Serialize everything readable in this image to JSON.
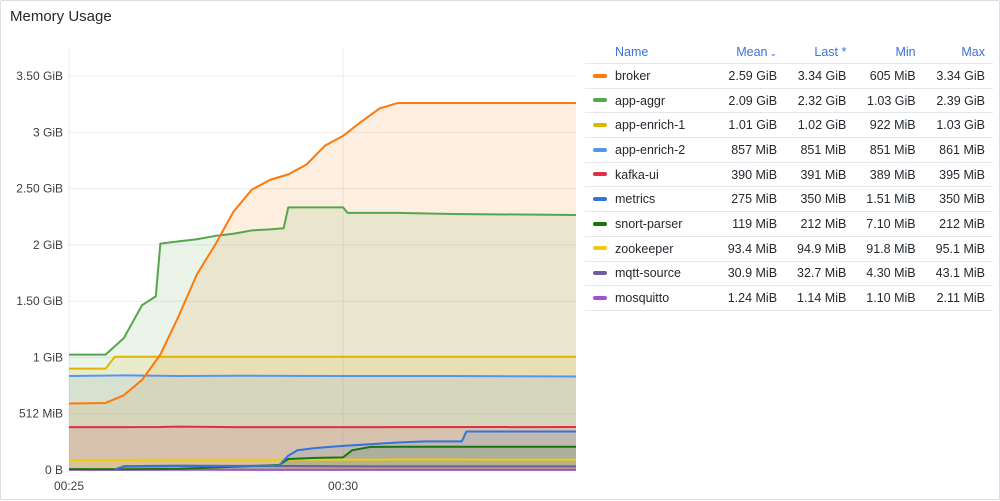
{
  "panel": {
    "title": "Memory Usage"
  },
  "legend": {
    "headers": {
      "name": "Name",
      "mean": "Mean",
      "last": "Last *",
      "min": "Min",
      "max": "Max"
    },
    "sort_icon": "chevron-down-icon",
    "rows": [
      {
        "name": "broker",
        "color": "#ff780a",
        "mean": "2.59 GiB",
        "last": "3.34 GiB",
        "min": "605 MiB",
        "max": "3.34 GiB"
      },
      {
        "name": "app-aggr",
        "color": "#56a64b",
        "mean": "2.09 GiB",
        "last": "2.32 GiB",
        "min": "1.03 GiB",
        "max": "2.39 GiB"
      },
      {
        "name": "app-enrich-1",
        "color": "#e0b400",
        "mean": "1.01 GiB",
        "last": "1.02 GiB",
        "min": "922 MiB",
        "max": "1.03 GiB"
      },
      {
        "name": "app-enrich-2",
        "color": "#5794f2",
        "mean": "857 MiB",
        "last": "851 MiB",
        "min": "851 MiB",
        "max": "861 MiB"
      },
      {
        "name": "kafka-ui",
        "color": "#e02f44",
        "mean": "390 MiB",
        "last": "391 MiB",
        "min": "389 MiB",
        "max": "395 MiB"
      },
      {
        "name": "metrics",
        "color": "#3274d9",
        "mean": "275 MiB",
        "last": "350 MiB",
        "min": "1.51 MiB",
        "max": "350 MiB"
      },
      {
        "name": "snort-parser",
        "color": "#19730e",
        "mean": "119 MiB",
        "last": "212 MiB",
        "min": "7.10 MiB",
        "max": "212 MiB"
      },
      {
        "name": "zookeeper",
        "color": "#f2cc0c",
        "mean": "93.4 MiB",
        "last": "94.9 MiB",
        "min": "91.8 MiB",
        "max": "95.1 MiB"
      },
      {
        "name": "mqtt-source",
        "color": "#705da0",
        "mean": "30.9 MiB",
        "last": "32.7 MiB",
        "min": "4.30 MiB",
        "max": "43.1 MiB"
      },
      {
        "name": "mosquitto",
        "color": "#a352cc",
        "mean": "1.24 MiB",
        "last": "1.14 MiB",
        "min": "1.10 MiB",
        "max": "2.11 MiB"
      }
    ]
  },
  "chart_data": {
    "type": "area",
    "title": "Memory Usage",
    "unit": "MiB",
    "ylim": [
      0,
      3840
    ],
    "xlim": [
      "00:25:00",
      "00:34:15"
    ],
    "x_ticks": [
      {
        "t": "00:25:00",
        "label": "00:25"
      },
      {
        "t": "00:30:00",
        "label": "00:30"
      }
    ],
    "y_ticks": [
      {
        "v": 0,
        "label": "0 B"
      },
      {
        "v": 512,
        "label": "512 MiB"
      },
      {
        "v": 1024,
        "label": "1 GiB"
      },
      {
        "v": 1536,
        "label": "1.50 GiB"
      },
      {
        "v": 2048,
        "label": "2 GiB"
      },
      {
        "v": 2560,
        "label": "2.50 GiB"
      },
      {
        "v": 3072,
        "label": "3 GiB"
      },
      {
        "v": 3584,
        "label": "3.50 GiB"
      }
    ],
    "grid": true,
    "stacked": false,
    "legend_position": "right",
    "series": [
      {
        "name": "broker",
        "color": "#ff780a",
        "fill": "#ff780a",
        "points": [
          [
            "00:25:00",
            605
          ],
          [
            "00:25:40",
            610
          ],
          [
            "00:26:00",
            680
          ],
          [
            "00:26:20",
            820
          ],
          [
            "00:26:40",
            1050
          ],
          [
            "00:27:00",
            1400
          ],
          [
            "00:27:20",
            1780
          ],
          [
            "00:27:40",
            2050
          ],
          [
            "00:28:00",
            2350
          ],
          [
            "00:28:20",
            2550
          ],
          [
            "00:28:40",
            2640
          ],
          [
            "00:29:00",
            2690
          ],
          [
            "00:29:20",
            2780
          ],
          [
            "00:29:40",
            2950
          ],
          [
            "00:30:00",
            3040
          ],
          [
            "00:30:20",
            3170
          ],
          [
            "00:30:40",
            3290
          ],
          [
            "00:31:00",
            3340
          ],
          [
            "00:34:15",
            3340
          ]
        ]
      },
      {
        "name": "app-aggr",
        "color": "#56a64b",
        "fill": "#56a64b",
        "points": [
          [
            "00:25:00",
            1050
          ],
          [
            "00:25:40",
            1050
          ],
          [
            "00:26:00",
            1200
          ],
          [
            "00:26:20",
            1500
          ],
          [
            "00:26:35",
            1580
          ],
          [
            "00:26:40",
            2060
          ],
          [
            "00:27:00",
            2080
          ],
          [
            "00:27:20",
            2100
          ],
          [
            "00:27:40",
            2130
          ],
          [
            "00:28:00",
            2150
          ],
          [
            "00:28:20",
            2180
          ],
          [
            "00:28:40",
            2190
          ],
          [
            "00:28:55",
            2200
          ],
          [
            "00:29:00",
            2390
          ],
          [
            "00:29:30",
            2390
          ],
          [
            "00:30:00",
            2390
          ],
          [
            "00:30:05",
            2340
          ],
          [
            "00:31:00",
            2340
          ],
          [
            "00:32:00",
            2330
          ],
          [
            "00:34:15",
            2320
          ]
        ]
      },
      {
        "name": "app-enrich-1",
        "color": "#e0b400",
        "fill": "#e0b400",
        "points": [
          [
            "00:25:00",
            922
          ],
          [
            "00:25:40",
            922
          ],
          [
            "00:25:50",
            1030
          ],
          [
            "00:26:00",
            1030
          ],
          [
            "00:34:15",
            1030
          ]
        ]
      },
      {
        "name": "app-enrich-2",
        "color": "#5794f2",
        "fill": "#5794f2",
        "points": [
          [
            "00:25:00",
            855
          ],
          [
            "00:26:00",
            861
          ],
          [
            "00:27:00",
            855
          ],
          [
            "00:28:00",
            858
          ],
          [
            "00:29:00",
            856
          ],
          [
            "00:30:00",
            855
          ],
          [
            "00:31:00",
            855
          ],
          [
            "00:32:00",
            855
          ],
          [
            "00:33:00",
            853
          ],
          [
            "00:34:15",
            851
          ]
        ]
      },
      {
        "name": "kafka-ui",
        "color": "#e02f44",
        "fill": "#e02f44",
        "points": [
          [
            "00:25:00",
            390
          ],
          [
            "00:26:40",
            391
          ],
          [
            "00:27:00",
            395
          ],
          [
            "00:28:00",
            390
          ],
          [
            "00:30:00",
            390
          ],
          [
            "00:34:15",
            391
          ]
        ]
      },
      {
        "name": "metrics",
        "color": "#3274d9",
        "fill": "#3274d9",
        "points": [
          [
            "00:25:50",
            1.51
          ],
          [
            "00:26:00",
            30
          ],
          [
            "00:27:00",
            35
          ],
          [
            "00:28:00",
            35
          ],
          [
            "00:28:50",
            40
          ],
          [
            "00:29:00",
            130
          ],
          [
            "00:29:10",
            180
          ],
          [
            "00:29:30",
            200
          ],
          [
            "00:30:00",
            220
          ],
          [
            "00:30:20",
            230
          ],
          [
            "00:31:00",
            250
          ],
          [
            "00:31:30",
            260
          ],
          [
            "00:32:10",
            260
          ],
          [
            "00:32:15",
            350
          ],
          [
            "00:34:15",
            350
          ]
        ]
      },
      {
        "name": "snort-parser",
        "color": "#19730e",
        "fill": "#19730e",
        "points": [
          [
            "00:25:00",
            8
          ],
          [
            "00:26:00",
            7.1
          ],
          [
            "00:27:00",
            10
          ],
          [
            "00:28:00",
            30
          ],
          [
            "00:28:50",
            45
          ],
          [
            "00:29:00",
            100
          ],
          [
            "00:29:30",
            110
          ],
          [
            "00:30:00",
            115
          ],
          [
            "00:30:10",
            180
          ],
          [
            "00:30:30",
            210
          ],
          [
            "00:31:00",
            212
          ],
          [
            "00:34:15",
            212
          ]
        ]
      },
      {
        "name": "zookeeper",
        "color": "#f2cc0c",
        "fill": "#f2cc0c",
        "points": [
          [
            "00:25:00",
            92
          ],
          [
            "00:27:00",
            93
          ],
          [
            "00:29:00",
            94
          ],
          [
            "00:31:00",
            95
          ],
          [
            "00:34:15",
            94.9
          ]
        ]
      },
      {
        "name": "mqtt-source",
        "color": "#705da0",
        "fill": "#705da0",
        "points": [
          [
            "00:25:50",
            4.3
          ],
          [
            "00:26:00",
            35
          ],
          [
            "00:27:00",
            40
          ],
          [
            "00:28:00",
            38
          ],
          [
            "00:29:00",
            36
          ],
          [
            "00:30:00",
            34
          ],
          [
            "00:31:00",
            33
          ],
          [
            "00:32:00",
            33
          ],
          [
            "00:34:15",
            32.7
          ]
        ]
      },
      {
        "name": "mosquitto",
        "color": "#a352cc",
        "fill": "#a352cc",
        "points": [
          [
            "00:25:00",
            1.2
          ],
          [
            "00:27:00",
            2.1
          ],
          [
            "00:30:00",
            1.2
          ],
          [
            "00:34:15",
            1.14
          ]
        ]
      }
    ]
  }
}
